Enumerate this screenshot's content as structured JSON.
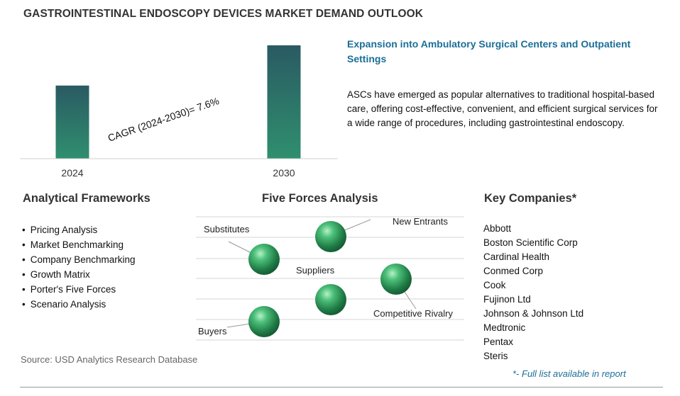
{
  "title": "GASTROINTESTINAL ENDOSCOPY DEVICES MARKET DEMAND OUTLOOK",
  "chart_data": {
    "type": "bar",
    "categories": [
      "2024",
      "2030"
    ],
    "values": [
      1.0,
      1.55
    ],
    "annotation": "CAGR (2024-2030)=  7.6%",
    "bar_color_top": "#2a5a63",
    "bar_color_bottom": "#2f8f6e",
    "grid": false,
    "legend": "none"
  },
  "headline": "Expansion into Ambulatory Surgical Centers and Outpatient Settings",
  "description": "ASCs have emerged as popular alternatives to traditional hospital-based care, offering cost-effective, convenient, and efficient surgical services for a wide range of procedures, including gastrointestinal endoscopy.",
  "frameworks": {
    "heading": "Analytical Frameworks",
    "items": [
      "Pricing Analysis",
      "Market Benchmarking",
      "Company Benchmarking",
      "Growth Matrix",
      "Porter's Five Forces",
      "Scenario Analysis"
    ]
  },
  "five_forces": {
    "heading": "Five Forces Analysis",
    "labels": {
      "new_entrants": "New Entrants",
      "substitutes": "Substitutes",
      "suppliers": "Suppliers",
      "competitive_rivalry": "Competitive Rivalry",
      "buyers": "Buyers"
    },
    "sphere_color": "#2e9a5e"
  },
  "companies": {
    "heading": "Key Companies*",
    "items": [
      "Abbott",
      "Boston Scientific Corp",
      "Cardinal Health",
      "Conmed Corp",
      "Cook",
      "Fujinon Ltd",
      "Johnson & Johnson Ltd",
      "Medtronic",
      "Pentax",
      "Steris"
    ],
    "footnote": "*- Full list available in report"
  },
  "source": "Source: USD Analytics Research Database"
}
